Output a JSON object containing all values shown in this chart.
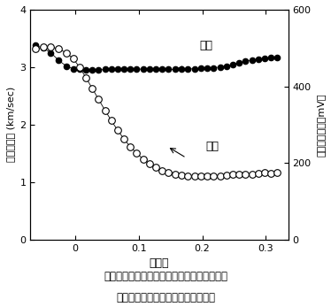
{
  "xlabel": "吸光度",
  "ylabel_left": "弾性波速度 (km/sec)",
  "ylabel_right": "弾性波の振幅（mV）",
  "xlim": [
    -0.07,
    0.335
  ],
  "ylim_left": [
    0,
    4
  ],
  "ylim_right": [
    0,
    600
  ],
  "xticks": [
    0.0,
    0.1,
    0.2,
    0.3
  ],
  "yticks_left": [
    0,
    1,
    2,
    3,
    4
  ],
  "yticks_right": [
    0,
    200,
    400,
    600
  ],
  "speed_x": [
    -0.062,
    -0.05,
    -0.038,
    -0.026,
    -0.014,
    -0.003,
    0.007,
    0.017,
    0.027,
    0.037,
    0.047,
    0.057,
    0.067,
    0.077,
    0.087,
    0.097,
    0.107,
    0.117,
    0.127,
    0.137,
    0.147,
    0.157,
    0.167,
    0.177,
    0.188,
    0.198,
    0.208,
    0.218,
    0.228,
    0.238,
    0.248,
    0.258,
    0.268,
    0.278,
    0.288,
    0.298,
    0.308,
    0.318
  ],
  "speed_y": [
    3.38,
    3.33,
    3.25,
    3.12,
    3.02,
    2.97,
    2.96,
    2.95,
    2.95,
    2.95,
    2.96,
    2.96,
    2.96,
    2.96,
    2.96,
    2.96,
    2.97,
    2.96,
    2.96,
    2.96,
    2.96,
    2.96,
    2.97,
    2.97,
    2.97,
    2.98,
    2.98,
    2.99,
    3.0,
    3.02,
    3.05,
    3.08,
    3.1,
    3.12,
    3.14,
    3.15,
    3.16,
    3.16
  ],
  "amp_x": [
    -0.062,
    -0.05,
    -0.038,
    -0.026,
    -0.014,
    -0.003,
    0.007,
    0.017,
    0.027,
    0.037,
    0.047,
    0.057,
    0.067,
    0.077,
    0.087,
    0.097,
    0.107,
    0.117,
    0.127,
    0.137,
    0.147,
    0.157,
    0.167,
    0.177,
    0.188,
    0.198,
    0.208,
    0.218,
    0.228,
    0.238,
    0.248,
    0.258,
    0.268,
    0.278,
    0.288,
    0.298,
    0.308,
    0.318
  ],
  "amp_y": [
    3.32,
    3.35,
    3.35,
    3.32,
    3.25,
    3.15,
    3.0,
    2.82,
    2.63,
    2.44,
    2.25,
    2.07,
    1.9,
    1.75,
    1.61,
    1.5,
    1.4,
    1.32,
    1.25,
    1.2,
    1.16,
    1.13,
    1.12,
    1.1,
    1.1,
    1.1,
    1.1,
    1.1,
    1.11,
    1.12,
    1.13,
    1.14,
    1.14,
    1.13,
    1.15,
    1.16,
    1.15,
    1.16
  ],
  "label_speed": "速度",
  "label_amp": "振幅",
  "caption_line1": "図２　乾燥過程での吸光度（水分飽和度）と",
  "caption_line2": "弾性波の伝播速度および振幅の変化",
  "bg_color": "#ffffff"
}
